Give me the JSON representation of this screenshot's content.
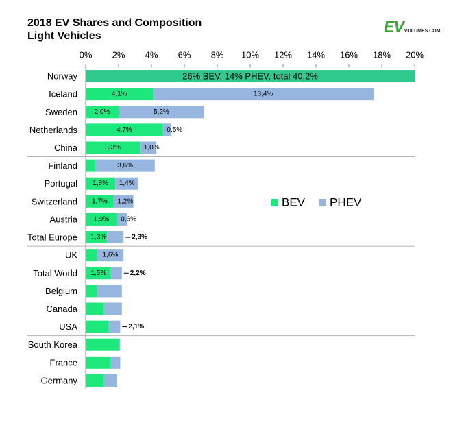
{
  "header": {
    "title_line1": "2018 EV Shares and Composition",
    "title_line2": "Light Vehicles"
  },
  "logo": {
    "main": "EV",
    "sub": "VOLUMES.COM"
  },
  "colors": {
    "bev": "#1de87b",
    "phev": "#97b6df",
    "norway": "#2fc88d",
    "axis": "#8c8c8c",
    "divider": "#b4b4b4",
    "logo": "#3aa335"
  },
  "chart_data": {
    "type": "bar",
    "orientation": "horizontal",
    "stacked": true,
    "title": "2018 EV Shares and Composition",
    "subtitle": "Light Vehicles",
    "xlim": [
      0,
      20
    ],
    "x_ticks": [
      "0%",
      "2%",
      "4%",
      "6%",
      "8%",
      "10%",
      "12%",
      "14%",
      "16%",
      "18%",
      "20%"
    ],
    "x_axis_position": "top",
    "legend": {
      "position": "center-right",
      "entries": [
        "BEV",
        "PHEV"
      ]
    },
    "series": [
      {
        "name": "BEV",
        "color": "#1de87b"
      },
      {
        "name": "PHEV",
        "color": "#97b6df"
      }
    ],
    "group_dividers_after": [
      4,
      9,
      14
    ],
    "rows": [
      {
        "category": "Norway",
        "bev": 26,
        "phev": 14,
        "bev_label": "",
        "phev_label": "",
        "total_label": "",
        "overlay_label": "26% BEV, 14% PHEV, total 40,2%",
        "truncated": true
      },
      {
        "category": "Iceland",
        "bev": 4.1,
        "phev": 13.4,
        "bev_label": "4,1%",
        "phev_label": "13,4%",
        "total_label": ""
      },
      {
        "category": "Sweden",
        "bev": 2.0,
        "phev": 5.2,
        "bev_label": "2,0%",
        "phev_label": "5,2%",
        "total_label": ""
      },
      {
        "category": "Netherlands",
        "bev": 4.7,
        "phev": 0.5,
        "bev_label": "4,7%",
        "phev_label": "0,5%",
        "total_label": ""
      },
      {
        "category": "China",
        "bev": 3.3,
        "phev": 1.0,
        "bev_label": "3,3%",
        "phev_label": "1,0%",
        "total_label": ""
      },
      {
        "category": "Finland",
        "bev": 0.6,
        "phev": 3.6,
        "bev_label": "",
        "phev_label": "3,6%",
        "total_label": ""
      },
      {
        "category": "Portugal",
        "bev": 1.8,
        "phev": 1.4,
        "bev_label": "1,8%",
        "phev_label": "1,4%",
        "total_label": ""
      },
      {
        "category": "Switzerland",
        "bev": 1.7,
        "phev": 1.2,
        "bev_label": "1,7%",
        "phev_label": "1,2%",
        "total_label": ""
      },
      {
        "category": "Austria",
        "bev": 1.9,
        "phev": 0.6,
        "bev_label": "1,9%",
        "phev_label": "0,6%",
        "total_label": ""
      },
      {
        "category": "Total Europe",
        "bev": 1.3,
        "phev": 1.0,
        "bev_label": "1,3%",
        "phev_label": "",
        "total_label": "2,3%"
      },
      {
        "category": "UK",
        "bev": 0.7,
        "phev": 1.6,
        "bev_label": "",
        "phev_label": "1,6%",
        "total_label": ""
      },
      {
        "category": "Total World",
        "bev": 1.5,
        "phev": 0.7,
        "bev_label": "1,5%",
        "phev_label": "",
        "total_label": "2,2%"
      },
      {
        "category": "Belgium",
        "bev": 0.7,
        "phev": 1.5,
        "bev_label": "",
        "phev_label": "",
        "total_label": ""
      },
      {
        "category": "Canada",
        "bev": 1.1,
        "phev": 1.1,
        "bev_label": "",
        "phev_label": "",
        "total_label": ""
      },
      {
        "category": "USA",
        "bev": 1.4,
        "phev": 0.7,
        "bev_label": "",
        "phev_label": "",
        "total_label": "2,1%"
      },
      {
        "category": "South Korea",
        "bev": 2.0,
        "phev": 0.1,
        "bev_label": "",
        "phev_label": "",
        "total_label": ""
      },
      {
        "category": "France",
        "bev": 1.5,
        "phev": 0.6,
        "bev_label": "",
        "phev_label": "",
        "total_label": ""
      },
      {
        "category": "Germany",
        "bev": 1.1,
        "phev": 0.8,
        "bev_label": "",
        "phev_label": "",
        "total_label": ""
      }
    ]
  }
}
